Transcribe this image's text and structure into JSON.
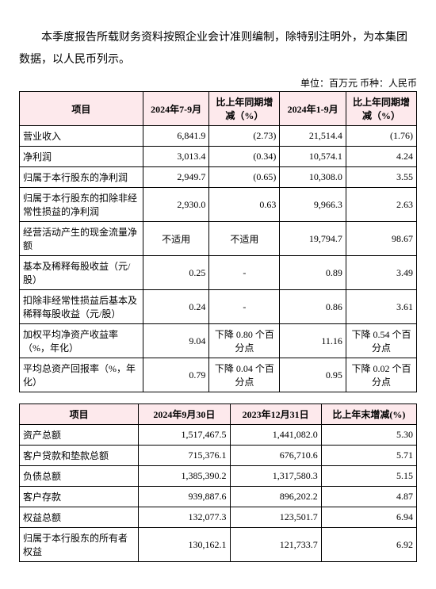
{
  "intro": "本季度报告所载财务资料按照企业会计准则编制，除特别注明外，为本集团数据，以人民币列示。",
  "unit_line": "单位：百万元  币种：人民币",
  "table1": {
    "headers": [
      "项目",
      "2024年7-9月",
      "比上年同期增减（%）",
      "2024年1-9月",
      "比上年同期增减（%）"
    ],
    "col_widths": [
      "28%",
      "15%",
      "16%",
      "15%",
      "16%"
    ],
    "rows": [
      {
        "label": "营业收入",
        "v1": "6,841.9",
        "v2": "(2.73)",
        "v3": "21,514.4",
        "v4": "(1.76)"
      },
      {
        "label": "净利润",
        "v1": "3,013.4",
        "v2": "(0.34)",
        "v3": "10,574.1",
        "v4": "4.24"
      },
      {
        "label": "归属于本行股东的净利润",
        "v1": "2,949.7",
        "v2": "(0.65)",
        "v3": "10,308.0",
        "v4": "3.55"
      },
      {
        "label": "归属于本行股东的扣除非经常性损益的净利润",
        "v1": "2,930.0",
        "v2": "0.63",
        "v3": "9,966.3",
        "v4": "2.63"
      },
      {
        "label": "经营活动产生的现金流量净额",
        "v1": "不适用",
        "v2": "不适用",
        "v3": "19,794.7",
        "v4": "98.67",
        "v1center": true,
        "v2center": true
      },
      {
        "label": "基本及稀释每股收益（元/股）",
        "v1": "0.25",
        "v2": "-",
        "v3": "0.89",
        "v4": "3.49",
        "v2center": true
      },
      {
        "label": "扣除非经常性损益后基本及稀释每股收益（元/股）",
        "v1": "0.24",
        "v2": "-",
        "v3": "0.86",
        "v4": "3.61",
        "v2center": true
      },
      {
        "label": "加权平均净资产收益率（%，年化）",
        "v1": "9.04",
        "v2": "下降 0.80 个百分点",
        "v3": "11.16",
        "v4": "下降 0.54 个百分点",
        "v2center": true,
        "v4center": true
      },
      {
        "label": "平均总资产回报率（%，年化）",
        "v1": "0.79",
        "v2": "下降 0.04 个百分点",
        "v3": "0.95",
        "v4": "下降 0.02 个百分点",
        "v2center": true,
        "v4center": true
      }
    ]
  },
  "table2": {
    "headers": [
      "项目",
      "2024年9月30日",
      "2023年12月31日",
      "比上年末增减(%)"
    ],
    "col_widths": [
      "30%",
      "23%",
      "23%",
      "24%"
    ],
    "rows": [
      {
        "label": "资产总额",
        "v1": "1,517,467.5",
        "v2": "1,441,082.0",
        "v3": "5.30"
      },
      {
        "label": "客户贷款和垫款总额",
        "v1": "715,376.1",
        "v2": "676,710.6",
        "v3": "5.71"
      },
      {
        "label": "负债总额",
        "v1": "1,385,390.2",
        "v2": "1,317,580.3",
        "v3": "5.15"
      },
      {
        "label": "客户存款",
        "v1": "939,887.6",
        "v2": "896,202.2",
        "v3": "4.87"
      },
      {
        "label": "权益总额",
        "v1": "132,077.3",
        "v2": "123,501.7",
        "v3": "6.94"
      },
      {
        "label": "归属于本行股东的所有者权益",
        "v1": "130,162.1",
        "v2": "121,733.7",
        "v3": "6.92"
      }
    ]
  }
}
